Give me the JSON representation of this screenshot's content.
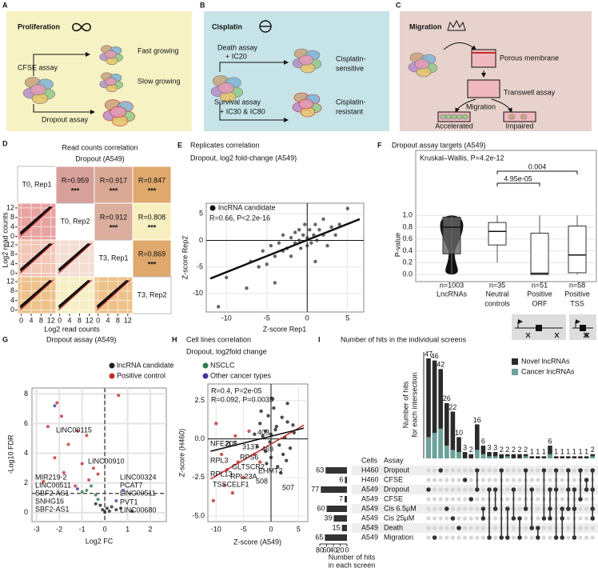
{
  "figure": {
    "panels": {
      "A": {
        "label": "A",
        "title": "Proliferation",
        "cfse": "CFSE assay",
        "fast": "Fast growing",
        "slow": "Slow growing",
        "dropout": "Dropout assay"
      },
      "B": {
        "label": "B",
        "title": "Cisplatin",
        "death": [
          "Death assay",
          "+ IC20"
        ],
        "sensitive": [
          "Cisplatin-",
          "sensitive"
        ],
        "survival": [
          "Survival assay",
          "+ IC30 & IC80"
        ],
        "resistant": [
          "Cisplatin-",
          "resistant"
        ]
      },
      "C": {
        "label": "C",
        "title": "Migration",
        "membrane": "Porous membrane",
        "transwell": "Transwell assay",
        "migration": "Migration",
        "accelerated": "Accelerated",
        "impaired": "Impaired"
      },
      "D": {
        "label": "D",
        "title": [
          "Read counts correlation",
          "Dropout (A549)"
        ],
        "samples": [
          "T0, Rep1",
          "T0, Rep2",
          "T3, Rep1",
          "T3, Rep2"
        ],
        "correlations": [
          [
            {
              "label": "R=0.959",
              "stars": "***",
              "color": "#d6a09b"
            },
            {
              "label": "R=0.917",
              "stars": "***",
              "color": "#d9a894"
            },
            {
              "label": "R=0.847",
              "stars": "***",
              "color": "#dfa86c"
            }
          ],
          [
            {
              "label": "R=0.912",
              "stars": "***",
              "color": "#dbae9e"
            },
            {
              "label": "R=0.808",
              "stars": "***",
              "color": "#f7efbf"
            }
          ],
          [
            {
              "label": "R=0.869",
              "stars": "***",
              "color": "#dfa86c"
            }
          ]
        ],
        "ticks": [
          0,
          4,
          8,
          12
        ],
        "lim": [
          -1.5,
          14
        ],
        "ylabel": "Log2 read counts",
        "xlabel": "Log2 read counts"
      },
      "E": {
        "label": "E",
        "title": [
          "Replicates correlation",
          "Dropout, log2 fold-change (A549)"
        ],
        "legend": "lncRNA candidate",
        "stat": "R=0.66, P<2.2e-16",
        "xlabel": "Z-score Rep1",
        "ylabel": "Z-score Rep2",
        "xlim": [
          -12.5,
          7
        ],
        "ylim": [
          -13.5,
          7
        ],
        "xticks": [
          -10,
          -5,
          0,
          5
        ],
        "yticks": [
          -10,
          -5,
          0,
          5
        ],
        "x": [
          -11,
          -10,
          -7.5,
          -7,
          -6,
          -5.5,
          -5,
          -4.5,
          -4,
          -3.5,
          -3,
          -3,
          -2.5,
          -2,
          -2,
          -1.5,
          -1.5,
          -1,
          -1,
          -0.8,
          -0.5,
          -0.3,
          0,
          0,
          0.3,
          0.5,
          0.8,
          1,
          1.2,
          1.5,
          2,
          2,
          2.5,
          3,
          3.5,
          4,
          5,
          -4,
          1
        ],
        "y": [
          -12.5,
          -7,
          -9,
          -4,
          -5,
          -2,
          -4.5,
          -1,
          -3,
          -0.5,
          -2,
          1,
          -1.5,
          0.5,
          -3,
          -0.5,
          1.5,
          0,
          2,
          -1.5,
          1,
          3,
          0.5,
          -1,
          2,
          -0.5,
          1,
          3,
          0,
          2,
          1,
          4,
          -1,
          2.5,
          1,
          3,
          6,
          -8,
          -4
        ]
      },
      "F": {
        "label": "F",
        "title": "Dropout assay targets (A549)",
        "test": "Kruskal–Wallis, P=4.2e-12",
        "comparisons": [
          "0.004",
          "4.95e-05"
        ],
        "ylabel": "P-value",
        "ylim": [
          -0.12,
          2.1
        ],
        "yticks": [
          {
            "value": 0,
            "label": "0.0"
          },
          0.2,
          0.4,
          0.6,
          0.8,
          {
            "value": 1,
            "label": "1.0"
          }
        ],
        "categories": [
          [
            "LncRNAs"
          ],
          [
            "Neutral",
            "controls"
          ],
          [
            "Positive",
            "ORF"
          ],
          [
            "Positive",
            "TSS"
          ]
        ],
        "counts": [
          "n=1003",
          "n=35",
          "n=51",
          "n=58"
        ],
        "boxes": [
          {
            "min": 0,
            "q1": 0.35,
            "median": 0.8,
            "q3": 0.97,
            "max": 1
          },
          {
            "min": 0.2,
            "q1": 0.5,
            "median": 0.73,
            "q3": 0.88,
            "max": 1
          },
          {
            "min": 0,
            "q1": 0,
            "median": 0.02,
            "q3": 0.7,
            "max": 1
          },
          {
            "min": 0,
            "q1": 0.03,
            "median": 0.33,
            "q3": 0.82,
            "max": 1
          }
        ]
      },
      "G": {
        "label": "G",
        "title": "Dropout assay (A549)",
        "xlabel": "Log2 FC",
        "ylabel": "-Log10 FDR",
        "xlim": [
          -3.2,
          2.7
        ],
        "ylim": [
          -0.6,
          8.4
        ],
        "xticks": [
          -3,
          -2,
          -1,
          0,
          1,
          2
        ],
        "yticks": [
          0,
          2,
          4,
          6,
          8
        ],
        "groups": [
          {
            "name": "lncRNA candidate",
            "color": "#222222"
          },
          {
            "name": "Positive control",
            "color": "#c0302f"
          },
          {
            "name": "NSCLC",
            "color": "#2e7d4f"
          },
          {
            "name": "Other cancer types",
            "color": "#3b3b9c"
          }
        ],
        "x": [
          -2.1,
          -1.9,
          -2.5,
          -1.2,
          -0.8,
          -1.6,
          -2.2,
          -1,
          -0.5,
          -1.8,
          -0.7,
          -1.3,
          0.6,
          -0.3,
          -2.7,
          -2.2,
          -1.2,
          0.8,
          0.5,
          -0.6,
          -0.4,
          -0.8,
          -0.3,
          -1,
          -0.2,
          0.1,
          0.2,
          -0.1,
          0.3,
          0.5,
          -0.4,
          0,
          0.7,
          1.2
        ],
        "y": [
          7.4,
          6.5,
          5.8,
          5.5,
          5.2,
          4.6,
          3.7,
          3.3,
          3,
          2.7,
          2.2,
          1.8,
          7.9,
          2.6,
          2.1,
          7.2,
          1.6,
          1.5,
          0.8,
          1.8,
          1.2,
          1.5,
          0.9,
          1.4,
          0.5,
          0.3,
          0.1,
          0.2,
          0.4,
          0.2,
          0.6,
          0.05,
          0.3,
          0.1
        ],
        "group": [
          1,
          1,
          1,
          1,
          1,
          1,
          1,
          1,
          1,
          1,
          1,
          1,
          1,
          1,
          1,
          3,
          3,
          3,
          3,
          2,
          2,
          2,
          2,
          2,
          0,
          0,
          0,
          0,
          0,
          0,
          0,
          0,
          0,
          0
        ],
        "labels": [
          {
            "text": "LINC00115",
            "group": 3
          },
          {
            "text": "MIR219-2",
            "group": 3
          },
          {
            "text": "LINC00511",
            "group": 2
          },
          {
            "text": "SBF2-AS1",
            "group": 2
          },
          {
            "text": "SNHG16",
            "group": 2
          },
          {
            "text": "SBF2-AS1",
            "group": 2
          },
          {
            "text": "LINC00910",
            "group": 3
          },
          {
            "text": "LINC00324",
            "group": 2
          },
          {
            "text": "PCAT7",
            "group": 2
          },
          {
            "text": "LINC00511",
            "group": 2
          },
          {
            "text": "PVT1",
            "group": 2
          },
          {
            "text": "LINC00680",
            "group": 3
          }
        ]
      },
      "H": {
        "label": "H",
        "title": [
          "Cell lines correlation",
          "Dropout, log2fold change"
        ],
        "stats": [
          {
            "text": "R=0.4, P=2e-05",
            "color": "#c0302f"
          },
          {
            "text": "R=0.092, P=0.0035",
            "color": "#222222"
          }
        ],
        "xlabel": "Z-score (A549)",
        "ylabel": "Z-score (H460)",
        "xlim": [
          -11.5,
          6.7
        ],
        "ylim": [
          -5.36,
          3.56
        ],
        "xticks": [
          -10,
          -5,
          0,
          5
        ],
        "yticks": [
          2.5,
          {
            "value": 0,
            "label": "0.0"
          },
          -2.5,
          {
            "value": -5,
            "label": "-5.0"
          }
        ],
        "colors": [
          "#222222",
          "#c0302f"
        ],
        "x": [
          -10,
          -9,
          -8,
          -8.5,
          -6,
          -5,
          -4,
          -3,
          -7,
          -2,
          -10.5,
          -6.5,
          -1,
          -3,
          -2.5,
          -2,
          -1.5,
          -1,
          -0.5,
          0,
          0,
          0.5,
          1,
          1.5,
          2,
          2.5,
          3,
          3.5,
          4,
          -0.8,
          0.3,
          1.2,
          2.2,
          -1.8,
          0.8,
          1.8,
          3,
          -0.2,
          2.8,
          4.2
        ],
        "y": [
          1,
          -1,
          -2,
          -3,
          -1.5,
          -2.5,
          0.5,
          -1,
          -3.5,
          -1.5,
          -4,
          0.2,
          0.5,
          0.3,
          -0.5,
          1,
          0.2,
          -0.8,
          1.5,
          0.3,
          -1.2,
          2,
          0.8,
          -0.4,
          1.4,
          0.1,
          2.3,
          -0.6,
          0.9,
          -1.6,
          2.6,
          -1.8,
          -1,
          1.8,
          0.6,
          -2.2,
          1.1,
          -0.2,
          -1.4,
          0.4
        ],
        "group": [
          1,
          1,
          1,
          1,
          1,
          1,
          1,
          1,
          1,
          1,
          1,
          1,
          0,
          0,
          0,
          0,
          0,
          0,
          0,
          0,
          0,
          0,
          0,
          0,
          0,
          0,
          0,
          0,
          0,
          0,
          0,
          0,
          0,
          0,
          0,
          0,
          0,
          0,
          0,
          0
        ],
        "genes": [
          "NFE2L2",
          "RPL3",
          "RPS6",
          "GLTSCR2",
          "RPL13",
          "RPL23A",
          "TSSCELF1",
          "EHMT2"
        ],
        "ids": [
          "205",
          "3137",
          "469",
          "403",
          "508",
          "507"
        ]
      },
      "I": {
        "label": "I",
        "title": "Number of hits in the individual screens",
        "legend": [
          {
            "name": "Novel lncRNAs",
            "color": "#2b2b2b"
          },
          {
            "name": "Cancer lncRNAs",
            "color": "#6aa39a"
          }
        ],
        "ylabel": [
          "Number of hits",
          "for each intersection"
        ],
        "ylim": [
          0,
          50
        ],
        "values": [
          47,
          46,
          42,
          26,
          22,
          10,
          3,
          2,
          16,
          6,
          3,
          3,
          2,
          2,
          2,
          2,
          2,
          1,
          1,
          1,
          6,
          1,
          1,
          1,
          1,
          1,
          1,
          2
        ],
        "cancer": [
          10,
          12,
          14,
          6,
          4,
          3,
          0,
          0,
          4,
          2,
          1,
          1,
          0,
          1,
          0,
          0,
          1,
          0,
          0,
          0,
          2,
          0,
          0,
          0,
          0,
          0,
          0,
          1
        ],
        "sets": [
          [
            2
          ],
          [
            7
          ],
          [
            0
          ],
          [
            4
          ],
          [
            5
          ],
          [
            6
          ],
          [
            1
          ],
          [
            3
          ],
          [
            0,
            2
          ],
          [
            4,
            5
          ],
          [
            2,
            7
          ],
          [
            2,
            4
          ],
          [
            0,
            7
          ],
          [
            4,
            7
          ],
          [
            2,
            5
          ],
          [
            5,
            7
          ],
          [
            0,
            4
          ],
          [
            2,
            6
          ],
          [
            6,
            7
          ],
          [
            0,
            5
          ],
          [
            2,
            4,
            5
          ],
          [
            0,
            2,
            7
          ],
          [
            4,
            5,
            7
          ],
          [
            0,
            2,
            4
          ],
          [
            2,
            4,
            7
          ],
          [
            0,
            3
          ],
          [
            1,
            2
          ],
          [
            0,
            2,
            4,
            5
          ]
        ],
        "header": [
          "Cells",
          "Assay"
        ],
        "screens": [
          {
            "cells": "H460",
            "assay": "Dropout",
            "size": 63
          },
          {
            "cells": "H460",
            "assay": "CFSE",
            "size": 6
          },
          {
            "cells": "A549",
            "assay": "Dropout",
            "size": 77
          },
          {
            "cells": "A549",
            "assay": "CFSE",
            "size": 7
          },
          {
            "cells": "A549",
            "assay": "Cis 6.5µM",
            "size": 60
          },
          {
            "cells": "A549",
            "assay": "Cis 25µM",
            "size": 39
          },
          {
            "cells": "A549",
            "assay": "Death",
            "size": 15
          },
          {
            "cells": "A549",
            "assay": "Migration",
            "size": 65
          }
        ],
        "size_lim": [
          0,
          80
        ],
        "size_ticks": [
          80,
          60,
          40,
          20,
          0
        ],
        "xlabel": [
          "Number of hits",
          "in each screen"
        ]
      }
    }
  }
}
